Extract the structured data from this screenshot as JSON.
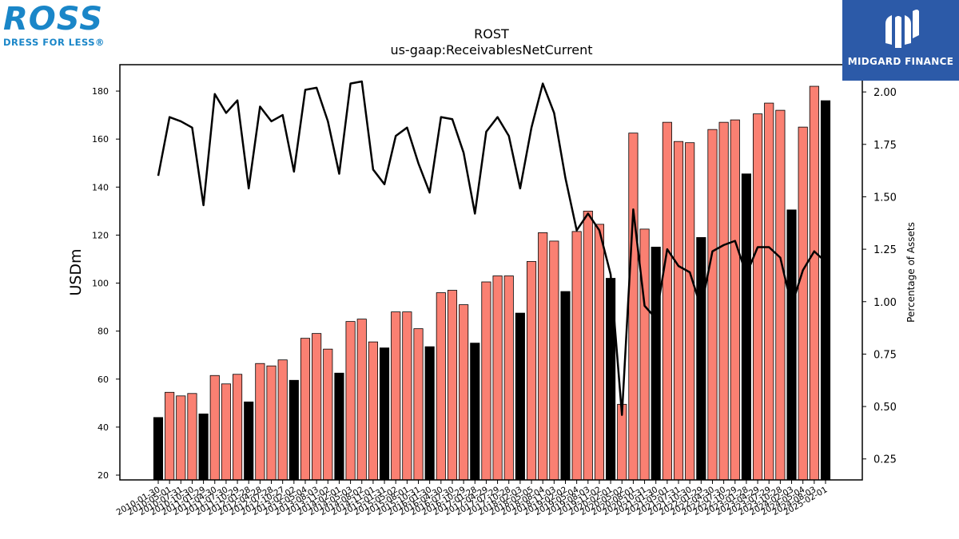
{
  "brand": {
    "ross_word": "ROSS",
    "ross_tagline": "DRESS FOR LESS®",
    "midgard_text": "MIDGARD FINANCE",
    "midgard_color": "#2c5aa8",
    "ross_color": "#1a86c8"
  },
  "chart_data": {
    "type": "bar",
    "title": "ROST",
    "subtitle": "us-gaap:ReceivablesNetCurrent",
    "ylabel": "USDm",
    "y2label": "Percentage of Assets",
    "ylim": [
      18,
      191
    ],
    "y2lim": [
      0.15,
      2.13
    ],
    "yticks": [
      20,
      40,
      60,
      80,
      100,
      120,
      140,
      160,
      180
    ],
    "y2ticks": [
      "0.25",
      "0.50",
      "0.75",
      "1.00",
      "1.25",
      "1.50",
      "1.75",
      "2.00"
    ],
    "bar_color_quarter": "#fa8072",
    "bar_color_annual": "#000000",
    "categories": [
      "2010-01-30",
      "2010-05-01",
      "2010-07-31",
      "2010-10-30",
      "2011-01-29",
      "2011-04-30",
      "2011-07-30",
      "2011-10-29",
      "2012-01-28",
      "2012-04-28",
      "2012-07-28",
      "2012-10-27",
      "2013-02-02",
      "2013-05-04",
      "2013-08-03",
      "2013-11-02",
      "2014-02-01",
      "2014-05-03",
      "2014-08-02",
      "2014-11-01",
      "2015-01-31",
      "2015-05-02",
      "2015-08-01",
      "2015-10-31",
      "2016-01-30",
      "2016-04-30",
      "2016-07-30",
      "2016-10-29",
      "2017-01-28",
      "2017-04-29",
      "2017-07-29",
      "2017-10-28",
      "2018-02-03",
      "2018-05-05",
      "2018-08-04",
      "2018-11-03",
      "2019-02-02",
      "2019-05-04",
      "2019-08-03",
      "2019-11-02",
      "2020-02-01",
      "2020-05-02",
      "2020-08-01",
      "2020-10-31",
      "2021-01-30",
      "2021-05-01",
      "2021-07-31",
      "2021-10-30",
      "2022-01-29",
      "2022-04-30",
      "2022-07-30",
      "2022-10-29",
      "2023-01-28",
      "2023-04-29",
      "2023-07-29",
      "2023-10-28",
      "2024-02-03",
      "2024-05-04",
      "2024-08-03",
      "2025-02-01"
    ],
    "values": [
      44,
      54.5,
      53,
      54,
      45.5,
      61.5,
      58,
      62,
      50.5,
      66.5,
      65.5,
      68,
      59.5,
      77,
      79,
      72.5,
      62.5,
      84,
      85,
      75.5,
      73,
      88,
      88,
      81,
      73.5,
      96,
      97,
      91,
      75,
      100.5,
      103,
      103,
      87.5,
      109,
      121,
      117.5,
      96.5,
      121.5,
      130,
      124.5,
      102,
      49.5,
      162.5,
      122.5,
      115,
      167,
      159,
      158.5,
      119,
      164,
      167,
      168,
      145.5,
      170.5,
      175,
      172,
      130.5,
      165,
      182,
      176
    ],
    "annual": [
      1,
      0,
      0,
      0,
      1,
      0,
      0,
      0,
      1,
      0,
      0,
      0,
      1,
      0,
      0,
      0,
      1,
      0,
      0,
      0,
      1,
      0,
      0,
      0,
      1,
      0,
      0,
      0,
      1,
      0,
      0,
      0,
      1,
      0,
      0,
      0,
      1,
      0,
      0,
      0,
      1,
      0,
      0,
      0,
      1,
      0,
      0,
      0,
      1,
      0,
      0,
      0,
      1,
      0,
      0,
      0,
      1,
      0,
      0,
      1
    ],
    "pct_of_assets": [
      1.6,
      1.88,
      1.86,
      1.83,
      1.46,
      1.99,
      1.9,
      1.96,
      1.54,
      1.93,
      1.86,
      1.89,
      1.62,
      2.01,
      2.02,
      1.86,
      1.61,
      2.04,
      2.05,
      1.63,
      1.56,
      1.79,
      1.83,
      1.66,
      1.52,
      1.88,
      1.87,
      1.71,
      1.42,
      1.81,
      1.88,
      1.79,
      1.54,
      1.83,
      2.04,
      1.9,
      1.59,
      1.34,
      1.42,
      1.34,
      1.13,
      0.46,
      1.44,
      0.98,
      0.92,
      1.25,
      1.17,
      1.14,
      0.97,
      1.24,
      1.27,
      1.29,
      1.13,
      1.26,
      1.26,
      1.21,
      0.98,
      1.15,
      1.24,
      1.19
    ]
  }
}
